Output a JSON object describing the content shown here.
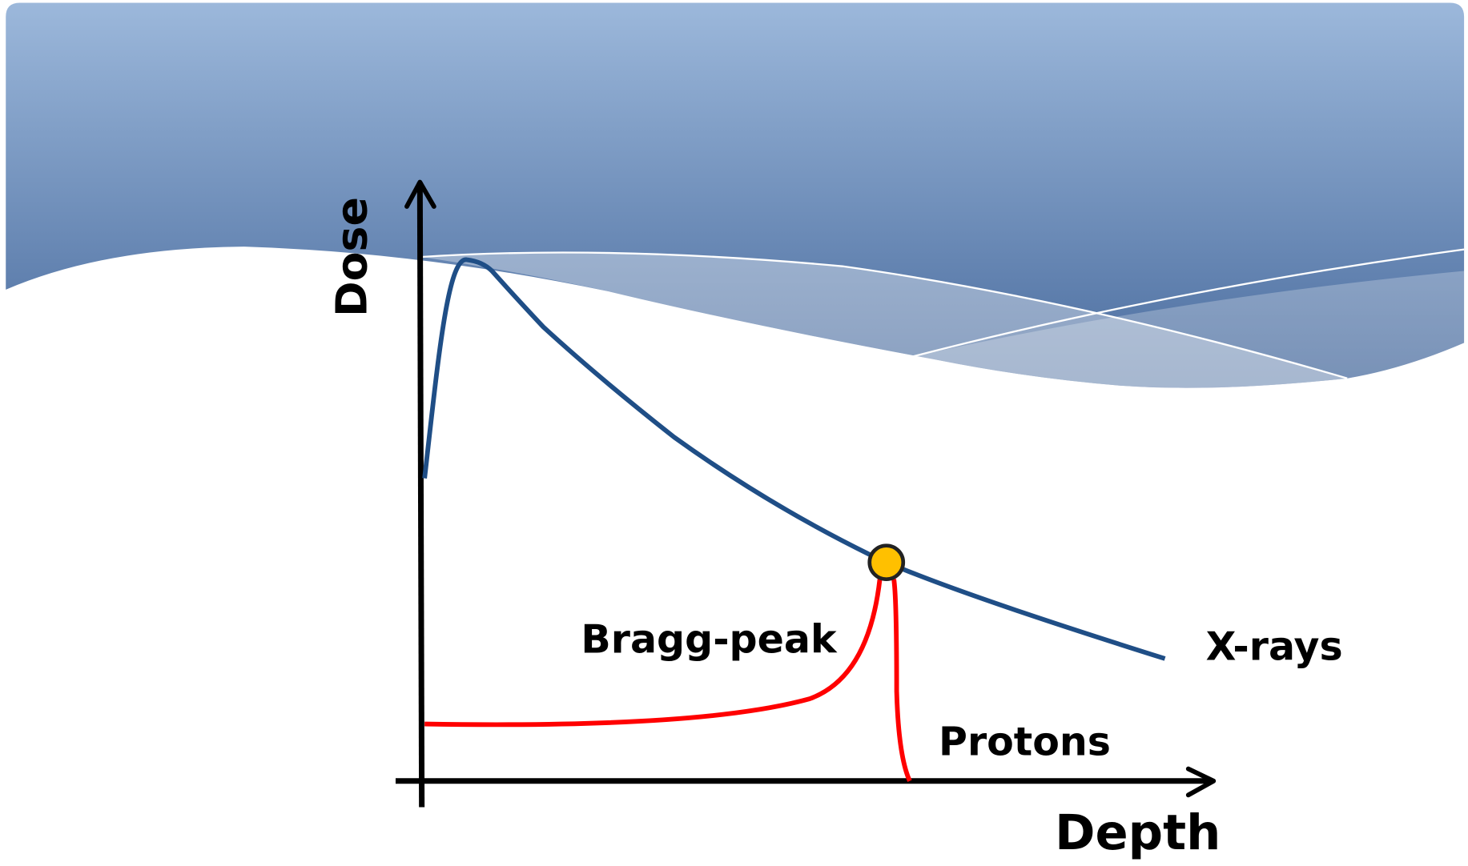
{
  "axes": {
    "y_label": "Dose",
    "x_label": "Depth"
  },
  "curves": [
    {
      "label": "X-rays"
    },
    {
      "label": "Protons"
    }
  ],
  "annotations": [
    {
      "label": "Bragg-peak"
    }
  ]
}
